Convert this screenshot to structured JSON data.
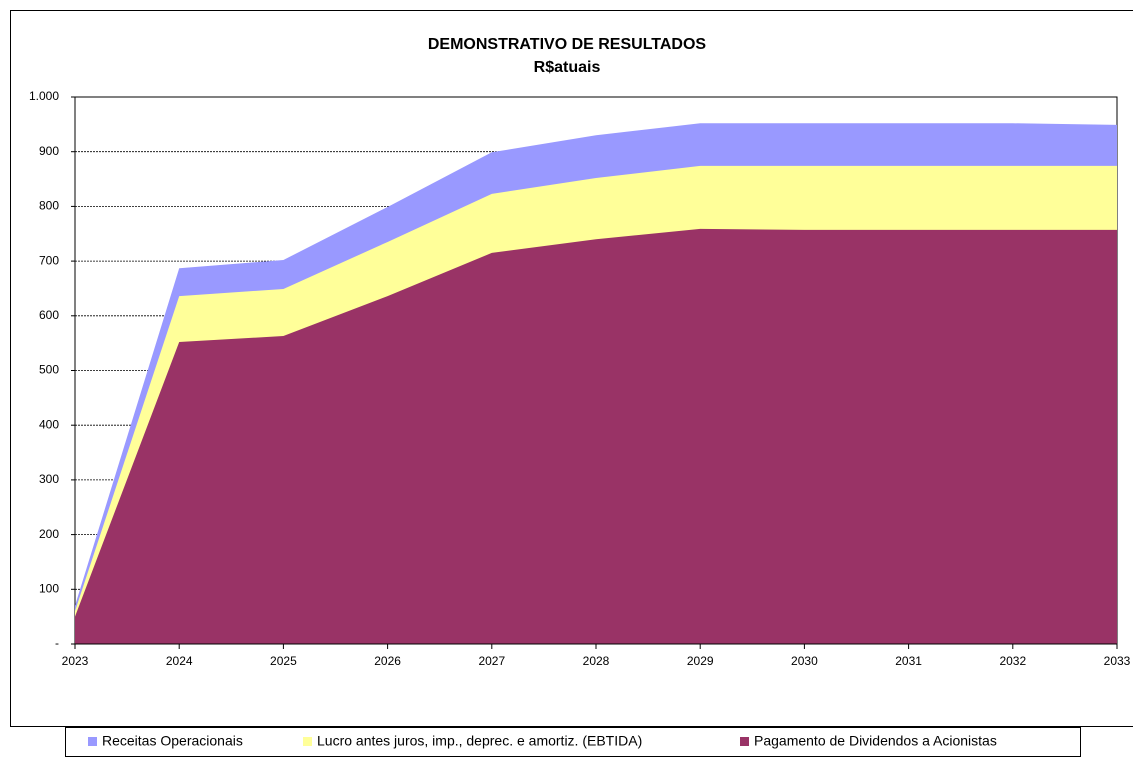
{
  "chart_data": {
    "type": "area",
    "title": "DEMONSTRATIVO DE RESULTADOS",
    "subtitle": "R$atuais",
    "categories": [
      "2023",
      "2024",
      "2025",
      "2026",
      "2027",
      "2028",
      "2029",
      "2030",
      "2031",
      "2032",
      "2033"
    ],
    "series": [
      {
        "name": "Receitas Operacionais",
        "color": "#9999ff",
        "values": [
          70,
          687,
          702,
          799,
          899,
          930,
          952,
          952,
          952,
          952,
          949
        ]
      },
      {
        "name": "Lucro antes juros, imp., deprec. e amortiz. (EBTIDA)",
        "color": "#ffff99",
        "values": [
          60,
          636,
          649,
          735,
          823,
          852,
          874,
          874,
          874,
          874,
          874
        ]
      },
      {
        "name": "Pagamento de Dividendos a Acionistas",
        "color": "#993366",
        "values": [
          50,
          552,
          563,
          636,
          715,
          740,
          759,
          757,
          757,
          757,
          757
        ]
      }
    ],
    "ylim": [
      0,
      1000
    ],
    "yticks": [
      {
        "value": 0,
        "label": "-"
      },
      100,
      200,
      300,
      400,
      500,
      600,
      700,
      800,
      900,
      {
        "value": 1000,
        "label": "1.000"
      }
    ],
    "grid": true,
    "legend": "bottom"
  }
}
